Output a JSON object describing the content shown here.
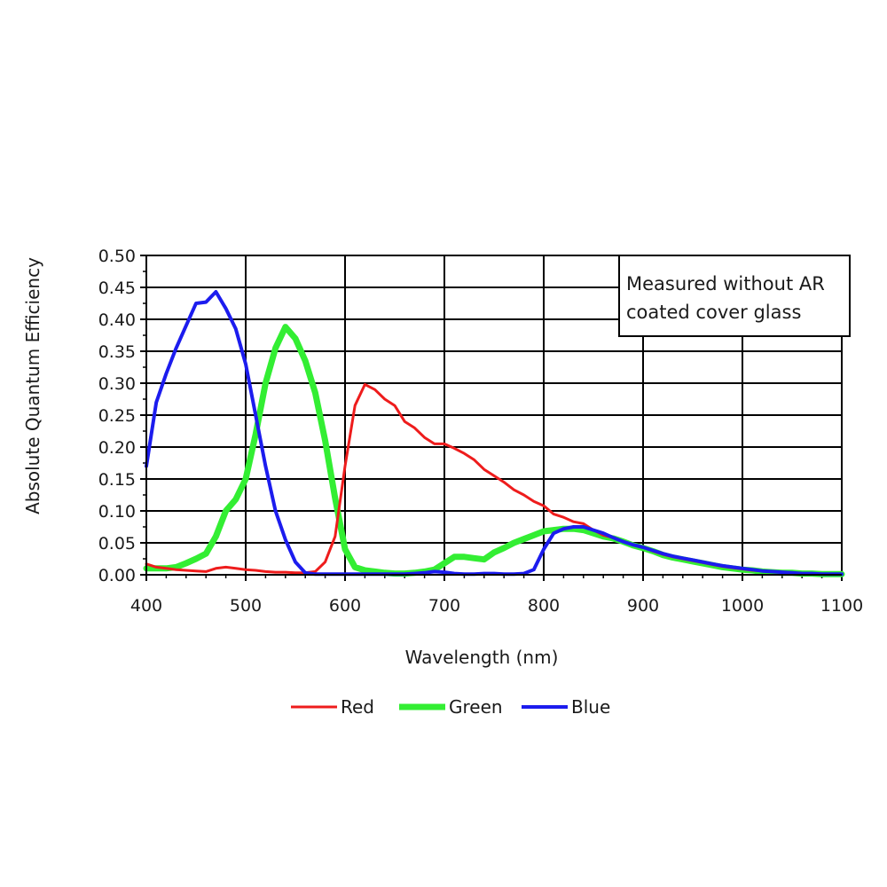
{
  "chart_data": {
    "type": "line",
    "title": "",
    "xlabel": "Wavelength (nm)",
    "ylabel": "Absolute Quantum Efficiency",
    "xlim": [
      400,
      1100
    ],
    "ylim": [
      0,
      0.5
    ],
    "x_ticks": [
      "400",
      "500",
      "600",
      "700",
      "800",
      "900",
      "1000",
      "1100"
    ],
    "y_ticks": [
      "0.00",
      "0.05",
      "0.10",
      "0.15",
      "0.20",
      "0.25",
      "0.30",
      "0.35",
      "0.40",
      "0.45",
      "0.50"
    ],
    "grid": true,
    "legend_position": "bottom",
    "annotation": {
      "lines": [
        "Measured without AR",
        "coated cover glass"
      ],
      "position": "top-right"
    },
    "series": [
      {
        "name": "Red",
        "color": "#ee1c1c",
        "points": [
          [
            400,
            0.017
          ],
          [
            410,
            0.012
          ],
          [
            420,
            0.01
          ],
          [
            430,
            0.008
          ],
          [
            440,
            0.007
          ],
          [
            450,
            0.006
          ],
          [
            460,
            0.005
          ],
          [
            470,
            0.01
          ],
          [
            480,
            0.012
          ],
          [
            490,
            0.01
          ],
          [
            500,
            0.008
          ],
          [
            510,
            0.007
          ],
          [
            520,
            0.005
          ],
          [
            530,
            0.004
          ],
          [
            540,
            0.004
          ],
          [
            550,
            0.003
          ],
          [
            560,
            0.003
          ],
          [
            570,
            0.005
          ],
          [
            580,
            0.02
          ],
          [
            590,
            0.06
          ],
          [
            600,
            0.17
          ],
          [
            610,
            0.265
          ],
          [
            620,
            0.298
          ],
          [
            630,
            0.29
          ],
          [
            640,
            0.275
          ],
          [
            650,
            0.265
          ],
          [
            660,
            0.24
          ],
          [
            670,
            0.23
          ],
          [
            680,
            0.215
          ],
          [
            690,
            0.205
          ],
          [
            700,
            0.205
          ],
          [
            710,
            0.198
          ],
          [
            720,
            0.19
          ],
          [
            730,
            0.18
          ],
          [
            740,
            0.165
          ],
          [
            750,
            0.155
          ],
          [
            760,
            0.145
          ],
          [
            770,
            0.133
          ],
          [
            780,
            0.125
          ],
          [
            790,
            0.115
          ],
          [
            800,
            0.108
          ],
          [
            810,
            0.095
          ],
          [
            820,
            0.09
          ],
          [
            830,
            0.083
          ],
          [
            840,
            0.08
          ],
          [
            850,
            0.07
          ],
          [
            860,
            0.062
          ],
          [
            870,
            0.058
          ],
          [
            880,
            0.052
          ],
          [
            890,
            0.047
          ],
          [
            900,
            0.043
          ],
          [
            910,
            0.037
          ],
          [
            920,
            0.032
          ],
          [
            930,
            0.028
          ],
          [
            940,
            0.025
          ],
          [
            950,
            0.022
          ],
          [
            960,
            0.019
          ],
          [
            970,
            0.016
          ],
          [
            980,
            0.013
          ],
          [
            990,
            0.011
          ],
          [
            1000,
            0.009
          ],
          [
            1010,
            0.007
          ],
          [
            1020,
            0.006
          ],
          [
            1030,
            0.005
          ],
          [
            1040,
            0.004
          ],
          [
            1050,
            0.003
          ],
          [
            1060,
            0.002
          ],
          [
            1070,
            0.002
          ],
          [
            1080,
            0.001
          ],
          [
            1090,
            0.001
          ],
          [
            1100,
            0.001
          ]
        ]
      },
      {
        "name": "Green",
        "color": "#33ee33",
        "points": [
          [
            400,
            0.01
          ],
          [
            410,
            0.01
          ],
          [
            420,
            0.01
          ],
          [
            430,
            0.012
          ],
          [
            440,
            0.018
          ],
          [
            450,
            0.025
          ],
          [
            460,
            0.033
          ],
          [
            470,
            0.06
          ],
          [
            480,
            0.1
          ],
          [
            490,
            0.118
          ],
          [
            500,
            0.15
          ],
          [
            510,
            0.22
          ],
          [
            520,
            0.3
          ],
          [
            530,
            0.355
          ],
          [
            540,
            0.388
          ],
          [
            550,
            0.37
          ],
          [
            560,
            0.335
          ],
          [
            570,
            0.285
          ],
          [
            580,
            0.21
          ],
          [
            590,
            0.12
          ],
          [
            600,
            0.04
          ],
          [
            610,
            0.012
          ],
          [
            620,
            0.007
          ],
          [
            630,
            0.005
          ],
          [
            640,
            0.003
          ],
          [
            650,
            0.002
          ],
          [
            660,
            0.002
          ],
          [
            670,
            0.003
          ],
          [
            680,
            0.005
          ],
          [
            690,
            0.008
          ],
          [
            700,
            0.018
          ],
          [
            710,
            0.028
          ],
          [
            720,
            0.028
          ],
          [
            730,
            0.026
          ],
          [
            740,
            0.024
          ],
          [
            750,
            0.035
          ],
          [
            760,
            0.042
          ],
          [
            770,
            0.05
          ],
          [
            780,
            0.056
          ],
          [
            790,
            0.062
          ],
          [
            800,
            0.068
          ],
          [
            810,
            0.07
          ],
          [
            820,
            0.072
          ],
          [
            830,
            0.072
          ],
          [
            840,
            0.07
          ],
          [
            850,
            0.065
          ],
          [
            860,
            0.06
          ],
          [
            870,
            0.057
          ],
          [
            880,
            0.052
          ],
          [
            890,
            0.046
          ],
          [
            900,
            0.042
          ],
          [
            910,
            0.037
          ],
          [
            920,
            0.031
          ],
          [
            930,
            0.027
          ],
          [
            940,
            0.024
          ],
          [
            950,
            0.021
          ],
          [
            960,
            0.018
          ],
          [
            970,
            0.015
          ],
          [
            980,
            0.012
          ],
          [
            990,
            0.01
          ],
          [
            1000,
            0.008
          ],
          [
            1010,
            0.007
          ],
          [
            1020,
            0.005
          ],
          [
            1030,
            0.004
          ],
          [
            1040,
            0.003
          ],
          [
            1050,
            0.003
          ],
          [
            1060,
            0.002
          ],
          [
            1070,
            0.002
          ],
          [
            1080,
            0.001
          ],
          [
            1090,
            0.001
          ],
          [
            1100,
            0.001
          ]
        ]
      },
      {
        "name": "Blue",
        "color": "#1c1cee",
        "points": [
          [
            400,
            0.17
          ],
          [
            410,
            0.27
          ],
          [
            420,
            0.315
          ],
          [
            430,
            0.355
          ],
          [
            440,
            0.39
          ],
          [
            450,
            0.425
          ],
          [
            460,
            0.427
          ],
          [
            470,
            0.443
          ],
          [
            480,
            0.417
          ],
          [
            490,
            0.385
          ],
          [
            500,
            0.33
          ],
          [
            510,
            0.25
          ],
          [
            520,
            0.17
          ],
          [
            530,
            0.1
          ],
          [
            540,
            0.055
          ],
          [
            550,
            0.02
          ],
          [
            560,
            0.003
          ],
          [
            570,
            0.001
          ],
          [
            580,
            0.001
          ],
          [
            590,
            0.001
          ],
          [
            600,
            0.001
          ],
          [
            610,
            0.001
          ],
          [
            620,
            0.001
          ],
          [
            630,
            0.001
          ],
          [
            640,
            0.001
          ],
          [
            650,
            0.001
          ],
          [
            660,
            0.001
          ],
          [
            670,
            0.002
          ],
          [
            680,
            0.003
          ],
          [
            690,
            0.005
          ],
          [
            700,
            0.004
          ],
          [
            710,
            0.002
          ],
          [
            720,
            0.001
          ],
          [
            730,
            0.001
          ],
          [
            740,
            0.002
          ],
          [
            750,
            0.002
          ],
          [
            760,
            0.001
          ],
          [
            770,
            0.001
          ],
          [
            780,
            0.002
          ],
          [
            790,
            0.008
          ],
          [
            800,
            0.04
          ],
          [
            810,
            0.065
          ],
          [
            820,
            0.072
          ],
          [
            830,
            0.075
          ],
          [
            840,
            0.075
          ],
          [
            850,
            0.07
          ],
          [
            860,
            0.065
          ],
          [
            870,
            0.058
          ],
          [
            880,
            0.052
          ],
          [
            890,
            0.047
          ],
          [
            900,
            0.043
          ],
          [
            910,
            0.038
          ],
          [
            920,
            0.033
          ],
          [
            930,
            0.029
          ],
          [
            940,
            0.026
          ],
          [
            950,
            0.023
          ],
          [
            960,
            0.02
          ],
          [
            970,
            0.017
          ],
          [
            980,
            0.014
          ],
          [
            990,
            0.012
          ],
          [
            1000,
            0.01
          ],
          [
            1010,
            0.008
          ],
          [
            1020,
            0.006
          ],
          [
            1030,
            0.005
          ],
          [
            1040,
            0.004
          ],
          [
            1050,
            0.003
          ],
          [
            1060,
            0.002
          ],
          [
            1070,
            0.002
          ],
          [
            1080,
            0.001
          ],
          [
            1090,
            0.001
          ],
          [
            1100,
            0.001
          ]
        ]
      }
    ]
  }
}
